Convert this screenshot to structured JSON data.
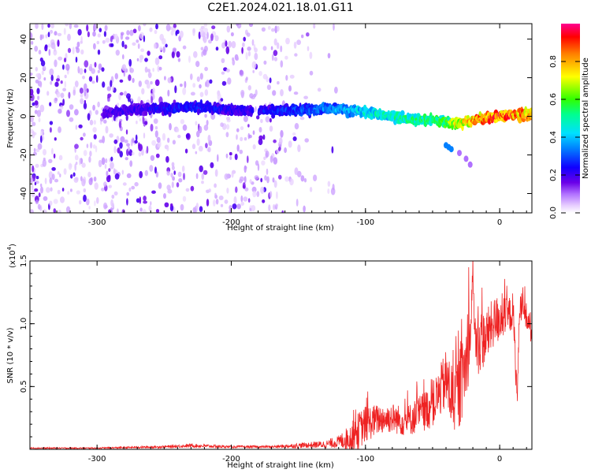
{
  "title": "C2E1.2024.021.18.01.G11",
  "chart_data": [
    {
      "type": "heatmap",
      "xlabel": "Height of straight line (km)",
      "ylabel": "Frequency (Hz)",
      "xlim": [
        -350,
        24
      ],
      "ylim": [
        -50,
        48
      ],
      "xticks": [
        -300,
        -200,
        -100,
        0
      ],
      "yticks": [
        -40,
        -20,
        0,
        20,
        40
      ],
      "colorbar": {
        "label": "Normalized spectral amplitude",
        "range": [
          0,
          1
        ],
        "ticks": [
          "0.0",
          "0.2",
          "0.4",
          "0.6",
          "0.8"
        ],
        "colormap": [
          "#ffffff",
          "#e8d0ff",
          "#8a2be2",
          "#5a00d0",
          "#0000ff",
          "#00d0ff",
          "#00ff80",
          "#40ff00",
          "#ffff00",
          "#ff9000",
          "#ff0000",
          "#ff0080"
        ]
      },
      "ridge": {
        "x": [
          -290,
          -270,
          -250,
          -230,
          -210,
          -190,
          -170,
          -150,
          -130,
          -110,
          -100,
          -90,
          -80,
          -70,
          -60,
          -50,
          -40,
          -32,
          -25,
          -20,
          -10,
          0,
          10,
          24
        ],
        "freq": [
          2,
          4,
          4,
          5,
          4,
          3,
          3,
          3,
          4,
          3,
          2,
          1,
          0,
          -1,
          -2,
          -2,
          -3,
          -4,
          -3,
          -2,
          -1,
          0,
          1,
          1
        ],
        "amplitude": [
          0.22,
          0.24,
          0.27,
          0.3,
          0.27,
          0.25,
          0.28,
          0.33,
          0.38,
          0.45,
          0.5,
          0.52,
          0.55,
          0.55,
          0.58,
          0.62,
          0.65,
          0.78,
          0.86,
          0.9,
          0.94,
          0.97,
          0.93,
          0.9
        ]
      }
    },
    {
      "type": "line",
      "xlabel": "Height of straight line (km)",
      "ylabel": "SNR (10 * v/v)",
      "multiplier": "(x10",
      "multiplier_exp": "4",
      "multiplier_close": ")",
      "xlim": [
        -350,
        24
      ],
      "ylim": [
        0,
        1.5
      ],
      "xticks": [
        -300,
        -200,
        -100,
        0
      ],
      "yticks": [
        "0.5",
        "1.0",
        "1.5"
      ],
      "series": [
        {
          "color": "#ee2222",
          "x": [
            -350,
            -300,
            -250,
            -230,
            -200,
            -170,
            -150,
            -130,
            -120,
            -110,
            -105,
            -100,
            -90,
            -80,
            -70,
            -60,
            -50,
            -45,
            -40,
            -35,
            -30,
            -25,
            -22,
            -20,
            -18,
            -15,
            -10,
            -5,
            0,
            5,
            10,
            13,
            15,
            20,
            24
          ],
          "y": [
            0.01,
            0.01,
            0.02,
            0.03,
            0.02,
            0.02,
            0.03,
            0.04,
            0.06,
            0.1,
            0.15,
            0.2,
            0.24,
            0.25,
            0.22,
            0.28,
            0.35,
            0.45,
            0.55,
            0.4,
            0.45,
            0.7,
            0.9,
            1.48,
            0.8,
            0.85,
            0.9,
            1.0,
            1.05,
            1.05,
            1.1,
            0.4,
            1.15,
            1.05,
            0.95
          ],
          "noise": [
            0.005,
            0.005,
            0.01,
            0.015,
            0.01,
            0.01,
            0.02,
            0.03,
            0.05,
            0.12,
            0.15,
            0.15,
            0.12,
            0.12,
            0.12,
            0.15,
            0.18,
            0.2,
            0.25,
            0.3,
            0.3,
            0.3,
            0.3,
            0.1,
            0.25,
            0.25,
            0.22,
            0.2,
            0.2,
            0.15,
            0.15,
            0.15,
            0.1,
            0.12,
            0.12
          ]
        }
      ]
    }
  ]
}
